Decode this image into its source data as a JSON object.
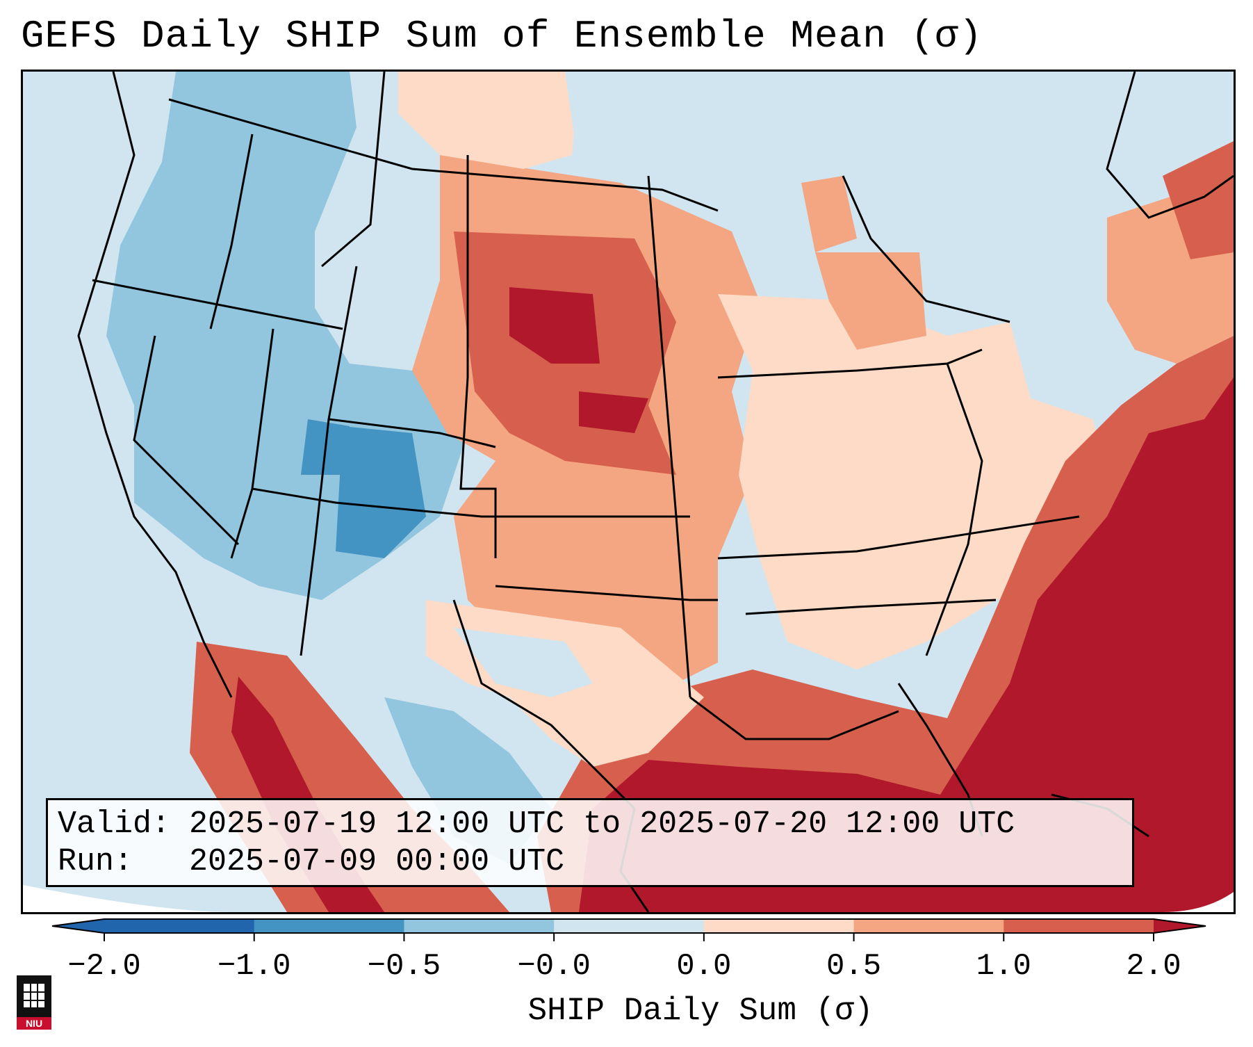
{
  "title": "GEFS Daily SHIP Sum of Ensemble Mean (σ)",
  "info": {
    "valid_line": "Valid: 2025-07-19 12:00 UTC to 2025-07-20 12:00 UTC",
    "run_line": "Run:   2025-07-09 00:00 UTC"
  },
  "colorbar": {
    "label": "SHIP Daily Sum (σ)",
    "ticks": [
      "−2.0",
      "−1.0",
      "−0.5",
      "−0.0",
      "0.0",
      "0.5",
      "1.0",
      "2.0"
    ],
    "bin_colors": [
      "#2166ac",
      "#4393c3",
      "#92c5de",
      "#d1e5f0",
      "#fddbc7",
      "#f4a582",
      "#d6604d",
      "#b2182b"
    ],
    "extend": "both"
  },
  "map": {
    "background_color": "#d1e5f0",
    "region": "Contiguous United States"
  },
  "logo": {
    "text": "NIU"
  }
}
